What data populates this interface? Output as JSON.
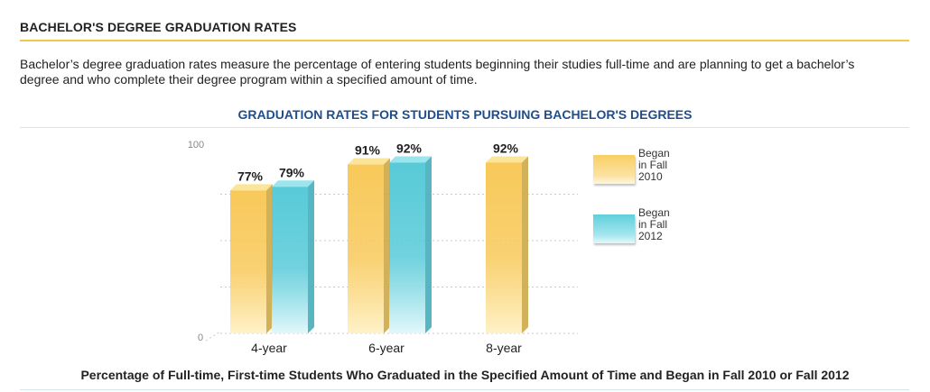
{
  "section": {
    "title": "BACHELOR'S DEGREE GRADUATION RATES",
    "intro": "Bachelor’s degree graduation rates measure the percentage of entering students beginning their studies full-time and are planning to get a bachelor’s degree and who complete their degree program within a specified amount of time."
  },
  "chart_data": {
    "type": "bar",
    "title": "GRADUATION RATES FOR STUDENTS PURSUING BACHELOR'S DEGREES",
    "categories": [
      "4-year",
      "6-year",
      "8-year"
    ],
    "series": [
      {
        "name": "Began in Fall 2010",
        "values": [
          77,
          91,
          92
        ],
        "labels": [
          "77%",
          "91%",
          "92%"
        ],
        "color": "#f7cf5e"
      },
      {
        "name": "Began in Fall 2012",
        "values": [
          79,
          92,
          null
        ],
        "labels": [
          "79%",
          "92%",
          ""
        ],
        "color": "#66d3df"
      }
    ],
    "y_ticks": [
      "0",
      "100"
    ],
    "ylim": [
      0,
      100
    ],
    "grid": true,
    "legend_position": "right",
    "legend": [
      {
        "line1": "Began",
        "line2": "in Fall",
        "line3": "2010"
      },
      {
        "line1": "Began",
        "line2": "in Fall",
        "line3": "2012"
      }
    ],
    "caption": "Percentage of Full-time, First-time Students Who Graduated in the Specified Amount of Time and Began in Fall 2010 or Fall 2012"
  }
}
